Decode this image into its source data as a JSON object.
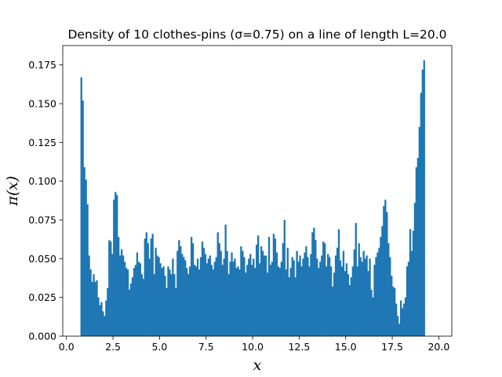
{
  "chart_data": {
    "type": "bar",
    "title": "Density of 10 clothes-pins (σ=0.75) on a line of length L=20.0",
    "xlabel": "x",
    "ylabel": "π(x)",
    "xlim": [
      -0.2,
      20.7
    ],
    "ylim": [
      0.0,
      0.1875
    ],
    "xticks": [
      0.0,
      2.5,
      5.0,
      7.5,
      10.0,
      12.5,
      15.0,
      17.5,
      20.0
    ],
    "xtick_labels": [
      "0.0",
      "2.5",
      "5.0",
      "7.5",
      "10.0",
      "12.5",
      "15.0",
      "17.5",
      "20.0"
    ],
    "yticks": [
      0.0,
      0.025,
      0.05,
      0.075,
      0.1,
      0.125,
      0.15,
      0.175
    ],
    "ytick_labels": [
      "0.000",
      "0.025",
      "0.050",
      "0.075",
      "0.100",
      "0.125",
      "0.150",
      "0.175"
    ],
    "grid": false,
    "bar_color": "#1f77b4",
    "bin_start": 0.75,
    "bin_end": 19.25,
    "values": [
      0.167,
      0.152,
      0.109,
      0.101,
      0.085,
      0.052,
      0.043,
      0.035,
      0.04,
      0.035,
      0.036,
      0.025,
      0.02,
      0.022,
      0.016,
      0.013,
      0.023,
      0.031,
      0.062,
      0.061,
      0.053,
      0.088,
      0.093,
      0.091,
      0.064,
      0.052,
      0.056,
      0.052,
      0.048,
      0.044,
      0.043,
      0.03,
      0.034,
      0.038,
      0.044,
      0.046,
      0.054,
      0.048,
      0.047,
      0.04,
      0.037,
      0.063,
      0.067,
      0.06,
      0.05,
      0.063,
      0.066,
      0.04,
      0.057,
      0.052,
      0.051,
      0.047,
      0.044,
      0.045,
      0.039,
      0.031,
      0.045,
      0.043,
      0.04,
      0.05,
      0.04,
      0.031,
      0.055,
      0.062,
      0.058,
      0.053,
      0.051,
      0.049,
      0.044,
      0.04,
      0.045,
      0.064,
      0.06,
      0.046,
      0.045,
      0.05,
      0.043,
      0.051,
      0.061,
      0.057,
      0.053,
      0.047,
      0.05,
      0.052,
      0.046,
      0.043,
      0.048,
      0.051,
      0.067,
      0.06,
      0.055,
      0.046,
      0.05,
      0.072,
      0.055,
      0.04,
      0.048,
      0.054,
      0.048,
      0.05,
      0.044,
      0.045,
      0.043,
      0.058,
      0.055,
      0.051,
      0.041,
      0.046,
      0.05,
      0.053,
      0.046,
      0.05,
      0.044,
      0.059,
      0.065,
      0.047,
      0.058,
      0.055,
      0.052,
      0.052,
      0.041,
      0.064,
      0.046,
      0.048,
      0.066,
      0.063,
      0.054,
      0.045,
      0.044,
      0.048,
      0.06,
      0.075,
      0.043,
      0.057,
      0.038,
      0.044,
      0.051,
      0.049,
      0.038,
      0.055,
      0.048,
      0.052,
      0.045,
      0.05,
      0.054,
      0.058,
      0.051,
      0.045,
      0.053,
      0.067,
      0.07,
      0.062,
      0.05,
      0.044,
      0.048,
      0.052,
      0.061,
      0.06,
      0.045,
      0.053,
      0.051,
      0.045,
      0.032,
      0.041,
      0.052,
      0.057,
      0.069,
      0.049,
      0.045,
      0.055,
      0.042,
      0.047,
      0.04,
      0.033,
      0.038,
      0.045,
      0.056,
      0.073,
      0.045,
      0.06,
      0.051,
      0.048,
      0.055,
      0.05,
      0.052,
      0.042,
      0.05,
      0.03,
      0.025,
      0.046,
      0.051,
      0.054,
      0.057,
      0.064,
      0.071,
      0.084,
      0.088,
      0.08,
      0.06,
      0.051,
      0.039,
      0.032,
      0.031,
      0.021,
      0.013,
      0.008,
      0.023,
      0.018,
      0.021,
      0.025,
      0.045,
      0.048,
      0.069,
      0.055,
      0.068,
      0.086,
      0.109,
      0.115,
      0.135,
      0.157,
      0.172,
      0.178
    ]
  }
}
